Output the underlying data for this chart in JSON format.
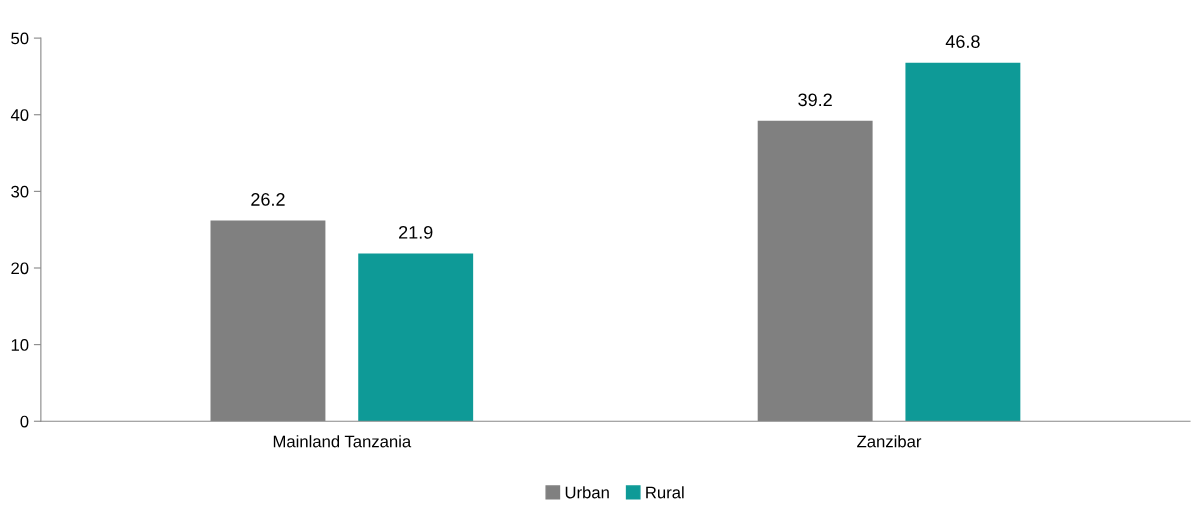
{
  "chart_data": {
    "type": "bar",
    "categories": [
      "Mainland Tanzania",
      "Zanzibar"
    ],
    "series": [
      {
        "name": "Urban",
        "color": "#808080",
        "values": [
          26.2,
          39.2
        ]
      },
      {
        "name": "Rural",
        "color": "#0e9a97",
        "values": [
          21.9,
          46.8
        ]
      }
    ],
    "ylim": [
      0,
      50
    ],
    "yticks": [
      0,
      10,
      20,
      30,
      40,
      50
    ],
    "data_labels": true,
    "legend": "bottom",
    "grid": false
  }
}
